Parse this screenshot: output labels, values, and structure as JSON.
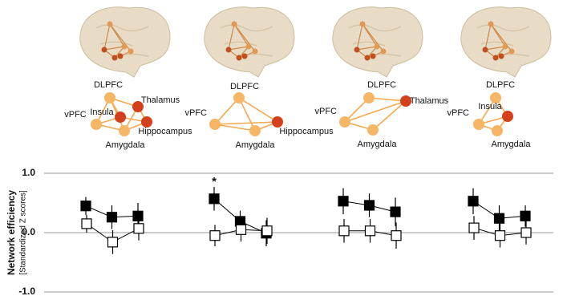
{
  "networks": [
    {
      "nodes": [
        {
          "label": "DLPFC",
          "color": "#f7b666"
        },
        {
          "label": "Thalamus",
          "color": "#d4401c"
        },
        {
          "label": "Insula",
          "color": "#d4401c"
        },
        {
          "label": "vPFC",
          "color": "#f7b666"
        },
        {
          "label": "Hippocampus",
          "color": "#d4401c"
        },
        {
          "label": "Amygdala",
          "color": "#f7b666"
        }
      ]
    },
    {
      "nodes": [
        {
          "label": "DLPFC",
          "color": "#f7b666"
        },
        {
          "label": "vPFC",
          "color": "#f7b666"
        },
        {
          "label": "Hippocampus",
          "color": "#d4401c"
        },
        {
          "label": "Amygdala",
          "color": "#f7b666"
        }
      ]
    },
    {
      "nodes": [
        {
          "label": "DLPFC",
          "color": "#f7b666"
        },
        {
          "label": "Thalamus",
          "color": "#d4401c"
        },
        {
          "label": "vPFC",
          "color": "#f7b666"
        },
        {
          "label": "Amygdala",
          "color": "#f7b666"
        }
      ]
    },
    {
      "nodes": [
        {
          "label": "DLPFC",
          "color": "#f7b666"
        },
        {
          "label": "Insula",
          "color": "#d4401c"
        },
        {
          "label": "vPFC",
          "color": "#f7b666"
        },
        {
          "label": "Amygdala",
          "color": "#f7b666"
        }
      ]
    }
  ],
  "chart_data": {
    "type": "line",
    "ylabel": "Network efficiency",
    "ylabel_sub": "[Standardized Z scores]",
    "ylim": [
      -1.0,
      1.0
    ],
    "yticks": [
      {
        "value": 1.0,
        "label": "1.0"
      },
      {
        "value": 0.0,
        "label": "0.0"
      },
      {
        "value": -1.0,
        "label": "-1.0"
      }
    ],
    "grid": true,
    "panels": [
      {
        "categories": [
          null,
          null,
          null
        ],
        "series": [
          {
            "color": "#000000",
            "fill": "#000000",
            "values": [
              0.45,
              0.26,
              0.28
            ],
            "errors": [
              0.15,
              0.2,
              0.22
            ]
          },
          {
            "color": "#000000",
            "fill": "#ffffff",
            "values": [
              0.15,
              -0.16,
              0.07
            ],
            "errors": [
              0.15,
              0.2,
              0.2
            ]
          }
        ]
      },
      {
        "categories": [
          null,
          null,
          null
        ],
        "annotation": "*",
        "series": [
          {
            "color": "#000000",
            "fill": "#000000",
            "values": [
              0.57,
              0.19,
              -0.01
            ],
            "errors": [
              0.2,
              0.18,
              0.22
            ]
          },
          {
            "color": "#000000",
            "fill": "#ffffff",
            "values": [
              -0.05,
              0.05,
              0.03
            ],
            "errors": [
              0.18,
              0.2,
              0.22
            ]
          }
        ]
      },
      {
        "categories": [
          null,
          null,
          null
        ],
        "series": [
          {
            "color": "#000000",
            "fill": "#000000",
            "values": [
              0.53,
              0.46,
              0.35
            ],
            "errors": [
              0.22,
              0.2,
              0.24
            ]
          },
          {
            "color": "#000000",
            "fill": "#ffffff",
            "values": [
              0.03,
              0.03,
              -0.05
            ],
            "errors": [
              0.2,
              0.2,
              0.22
            ]
          }
        ]
      },
      {
        "categories": [
          null,
          null,
          null
        ],
        "series": [
          {
            "color": "#000000",
            "fill": "#000000",
            "values": [
              0.53,
              0.24,
              0.28
            ],
            "errors": [
              0.22,
              0.22,
              0.18
            ]
          },
          {
            "color": "#000000",
            "fill": "#ffffff",
            "values": [
              0.08,
              -0.05,
              0.0
            ],
            "errors": [
              0.2,
              0.2,
              0.2
            ]
          }
        ]
      }
    ]
  }
}
